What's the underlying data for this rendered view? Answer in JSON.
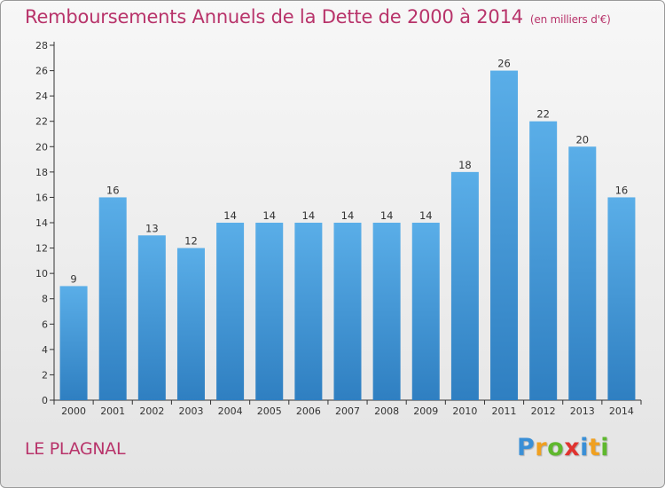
{
  "chart_data": {
    "type": "bar",
    "title": "Remboursements Annuels de la Dette de 2000 à 2014",
    "subtitle": "(en milliers d'€)",
    "categories": [
      "2000",
      "2001",
      "2002",
      "2003",
      "2004",
      "2005",
      "2006",
      "2007",
      "2008",
      "2009",
      "2010",
      "2011",
      "2012",
      "2013",
      "2014"
    ],
    "values": [
      9,
      16,
      13,
      12,
      14,
      14,
      14,
      14,
      14,
      14,
      18,
      26,
      22,
      20,
      16
    ],
    "data_labels": [
      "9",
      "16",
      "13",
      "12",
      "14",
      "14",
      "14",
      "14",
      "14",
      "14",
      "18",
      "26",
      "22",
      "20",
      "16"
    ],
    "ylim": [
      0,
      28
    ],
    "yticks": [
      0,
      2,
      4,
      6,
      8,
      10,
      12,
      14,
      16,
      18,
      20,
      22,
      24,
      26,
      28
    ],
    "xlabel": "",
    "ylabel": "",
    "grid": false,
    "bar_color_top": "#5aaee8",
    "bar_color_bottom": "#2f7fc1"
  },
  "footer": {
    "commune": "LE PLAGNAL",
    "brand_letters": [
      "P",
      "r",
      "o",
      "x",
      "i",
      "t",
      "i"
    ],
    "brand_colors": [
      "#3a8fd6",
      "#f0a020",
      "#5fb82e",
      "#e0332f",
      "#3a8fd6",
      "#f0a020",
      "#5fb82e"
    ]
  },
  "colors": {
    "title": "#b8336a",
    "axis": "#333333"
  }
}
